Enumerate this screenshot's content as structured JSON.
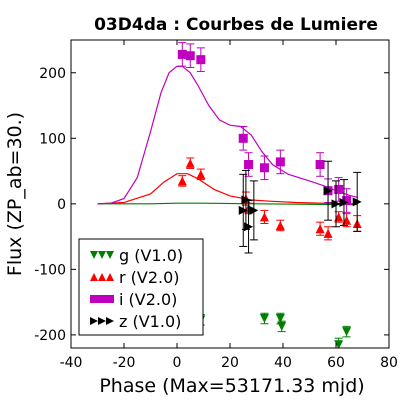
{
  "chart_data": {
    "type": "scatter",
    "title": "03D4da : Courbes de Lumiere",
    "xlabel": "Phase (Max=53171.33 mjd)",
    "ylabel": "Flux (ZP_ab=30.)",
    "xlim": [
      -40,
      80
    ],
    "ylim": [
      -220,
      250
    ],
    "xticks": [
      -40,
      -20,
      0,
      20,
      40,
      60,
      80
    ],
    "yticks": [
      -200,
      -100,
      0,
      100,
      200
    ],
    "xtick_labels": [
      "-40",
      "-20",
      "0",
      "20",
      "40",
      "60",
      "80"
    ],
    "ytick_labels": [
      "-200",
      "-100",
      "0",
      "100",
      "200"
    ],
    "grid": false,
    "legend_position": "lower-left",
    "series": [
      {
        "name": "g (V1.0)",
        "color": "#008000",
        "marker": "triangle-down",
        "points": [
          {
            "x": 2,
            "y": -160,
            "err": 8
          },
          {
            "x": 5,
            "y": -168,
            "err": 8
          },
          {
            "x": 9,
            "y": -177,
            "err": 8
          },
          {
            "x": 33,
            "y": -175,
            "err": 8
          },
          {
            "x": 39,
            "y": -175,
            "err": 8
          },
          {
            "x": 39.5,
            "y": -187,
            "err": 8
          },
          {
            "x": 61,
            "y": -215,
            "err": 10
          },
          {
            "x": 64,
            "y": -195,
            "err": 8
          }
        ],
        "model": [
          [
            -30,
            0
          ],
          [
            -10,
            0
          ],
          [
            0,
            1
          ],
          [
            10,
            1
          ],
          [
            30,
            0
          ],
          [
            60,
            -1
          ],
          [
            68,
            -1
          ]
        ]
      },
      {
        "name": "r (V2.0)",
        "color": "#ff0000",
        "marker": "triangle-up",
        "points": [
          {
            "x": 2,
            "y": 35,
            "err": 8
          },
          {
            "x": 5,
            "y": 62,
            "err": 8
          },
          {
            "x": 9,
            "y": 45,
            "err": 8
          },
          {
            "x": 26,
            "y": 8,
            "err": 10
          },
          {
            "x": 27,
            "y": -7,
            "err": 8
          },
          {
            "x": 33,
            "y": -20,
            "err": 10
          },
          {
            "x": 39,
            "y": -33,
            "err": 8
          },
          {
            "x": 54,
            "y": -38,
            "err": 10
          },
          {
            "x": 57,
            "y": -45,
            "err": 10
          },
          {
            "x": 61,
            "y": -20,
            "err": 8
          },
          {
            "x": 64,
            "y": -25,
            "err": 10
          },
          {
            "x": 68,
            "y": -30,
            "err": 12
          }
        ],
        "model": [
          [
            -30,
            0
          ],
          [
            -20,
            2
          ],
          [
            -10,
            15
          ],
          [
            -5,
            33
          ],
          [
            0,
            46
          ],
          [
            4,
            46
          ],
          [
            8,
            38
          ],
          [
            14,
            22
          ],
          [
            20,
            12
          ],
          [
            28,
            6
          ],
          [
            35,
            4
          ],
          [
            45,
            2
          ],
          [
            55,
            1
          ],
          [
            60,
            0
          ],
          [
            65,
            0
          ],
          [
            68,
            0
          ]
        ]
      },
      {
        "name": "i (V2.0)",
        "color": "#bf00bf",
        "marker": "square",
        "points": [
          {
            "x": 2,
            "y": 228,
            "err": 18
          },
          {
            "x": 5,
            "y": 226,
            "err": 18
          },
          {
            "x": 9,
            "y": 220,
            "err": 18
          },
          {
            "x": 25,
            "y": 100,
            "err": 18
          },
          {
            "x": 27,
            "y": 60,
            "err": 18
          },
          {
            "x": 33,
            "y": 55,
            "err": 18
          },
          {
            "x": 39,
            "y": 64,
            "err": 18
          },
          {
            "x": 54,
            "y": 60,
            "err": 18
          },
          {
            "x": 57,
            "y": 20,
            "err": 18
          },
          {
            "x": 61,
            "y": 22,
            "err": 18
          },
          {
            "x": 64,
            "y": 5,
            "err": 18
          }
        ],
        "model": [
          [
            -30,
            0
          ],
          [
            -25,
            1
          ],
          [
            -20,
            8
          ],
          [
            -15,
            40
          ],
          [
            -10,
            110
          ],
          [
            -6,
            170
          ],
          [
            -3,
            200
          ],
          [
            0,
            210
          ],
          [
            2,
            210
          ],
          [
            5,
            200
          ],
          [
            8,
            180
          ],
          [
            12,
            150
          ],
          [
            16,
            128
          ],
          [
            20,
            120
          ],
          [
            24,
            118
          ],
          [
            28,
            105
          ],
          [
            32,
            80
          ],
          [
            36,
            60
          ],
          [
            42,
            45
          ],
          [
            50,
            35
          ],
          [
            55,
            28
          ],
          [
            60,
            20
          ],
          [
            65,
            13
          ],
          [
            68,
            10
          ]
        ]
      },
      {
        "name": "z (V1.0)",
        "color": "#000000",
        "marker": "triangle-right",
        "points": [
          {
            "x": 25,
            "y": -10,
            "err": 55
          },
          {
            "x": 26,
            "y": 6,
            "err": 45
          },
          {
            "x": 27,
            "y": -35,
            "err": 40
          },
          {
            "x": 29,
            "y": -10,
            "err": 45
          },
          {
            "x": 57,
            "y": 20,
            "err": 45
          },
          {
            "x": 60,
            "y": 0,
            "err": 35
          },
          {
            "x": 63,
            "y": 2,
            "err": 35
          },
          {
            "x": 68,
            "y": 3,
            "err": 45
          }
        ],
        "model": []
      }
    ]
  }
}
